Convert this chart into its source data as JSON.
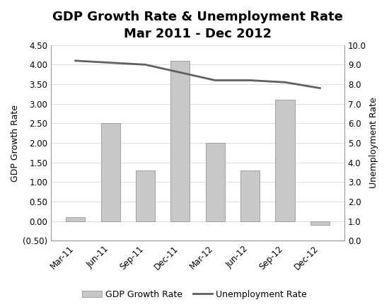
{
  "title_line1": "GDP Growth Rate & Unemployment Rate",
  "title_line2": "Mar 2011 - Dec 2012",
  "categories": [
    "Mar-11",
    "Jun-11",
    "Sep-11",
    "Dec-11",
    "Mar-12",
    "Jun-12",
    "Sep-12",
    "Dec-12"
  ],
  "gdp_values": [
    0.1,
    2.5,
    1.3,
    4.1,
    2.0,
    1.3,
    3.1,
    -0.1
  ],
  "unemployment_values": [
    9.2,
    9.1,
    9.0,
    8.6,
    8.2,
    8.2,
    8.1,
    7.8
  ],
  "bar_color": "#c8c8c8",
  "bar_edge_color": "#a0a0a0",
  "line_color": "#606060",
  "ylim_left": [
    -0.5,
    4.5
  ],
  "ylim_right": [
    0.0,
    10.0
  ],
  "yticks_left": [
    -0.5,
    0.0,
    0.5,
    1.0,
    1.5,
    2.0,
    2.5,
    3.0,
    3.5,
    4.0,
    4.5
  ],
  "ytick_labels_left": [
    "(0.50)",
    "0.00",
    "0.50",
    "1.00",
    "1.50",
    "2.00",
    "2.50",
    "3.00",
    "3.50",
    "4.00",
    "4.50"
  ],
  "yticks_right": [
    0.0,
    1.0,
    2.0,
    3.0,
    4.0,
    5.0,
    6.0,
    7.0,
    8.0,
    9.0,
    10.0
  ],
  "ytick_labels_right": [
    "0.0",
    "1.0",
    "2.0",
    "3.0",
    "4.0",
    "5.0",
    "6.0",
    "7.0",
    "8.0",
    "9.0",
    "10.0"
  ],
  "ylabel_left": "GDP Growth Rate",
  "ylabel_right": "Unemployment Rate",
  "legend_gdp": "GDP Growth Rate",
  "legend_unemp": "Unemployment Rate",
  "background_color": "#ffffff",
  "title_fontsize": 13,
  "label_fontsize": 9,
  "tick_fontsize": 8.5,
  "grid_color": "#d8d8d8"
}
